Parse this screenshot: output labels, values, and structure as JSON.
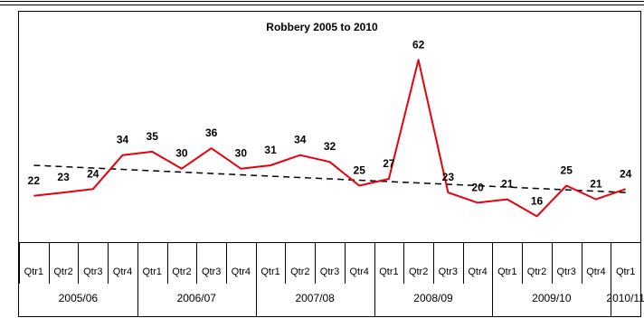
{
  "chart_data": {
    "type": "line",
    "title": "Robbery 2005 to 2010",
    "years": [
      "2005/06",
      "2006/07",
      "2007/08",
      "2008/09",
      "2009/10",
      "2010/11"
    ],
    "year_quarter_counts": [
      4,
      4,
      4,
      4,
      4,
      1
    ],
    "categories": [
      "Qtr1",
      "Qtr2",
      "Qtr3",
      "Qtr4",
      "Qtr1",
      "Qtr2",
      "Qtr3",
      "Qtr4",
      "Qtr1",
      "Qtr2",
      "Qtr3",
      "Qtr4",
      "Qtr1",
      "Qtr2",
      "Qtr3",
      "Qtr4",
      "Qtr1",
      "Qtr2",
      "Qtr3",
      "Qtr4",
      "Qtr1"
    ],
    "series": [
      {
        "name": "",
        "style": "solid",
        "color": "#e8000b",
        "values": [
          22,
          23,
          24,
          34,
          35,
          30,
          36,
          30,
          31,
          34,
          32,
          25,
          27,
          62,
          23,
          20,
          21,
          16,
          25,
          21,
          24
        ],
        "labels": [
          "22",
          "23",
          "24",
          "34",
          "35",
          "30",
          "36",
          "30",
          "31",
          "34",
          "32",
          "25",
          "27",
          "62",
          "23",
          "20",
          "21",
          "16",
          "25",
          "21",
          "24"
        ]
      },
      {
        "name": "",
        "style": "dashed",
        "color": "#000000",
        "values": [
          31.0,
          30.6,
          30.2,
          29.8,
          29.4,
          29.0,
          28.6,
          28.2,
          27.8,
          27.4,
          27.0,
          26.6,
          26.2,
          25.8,
          25.4,
          25.0,
          24.6,
          24.2,
          23.8,
          23.4,
          23.0
        ]
      }
    ],
    "ylim": [
      10,
      65
    ],
    "grid": false,
    "legend": "none"
  }
}
